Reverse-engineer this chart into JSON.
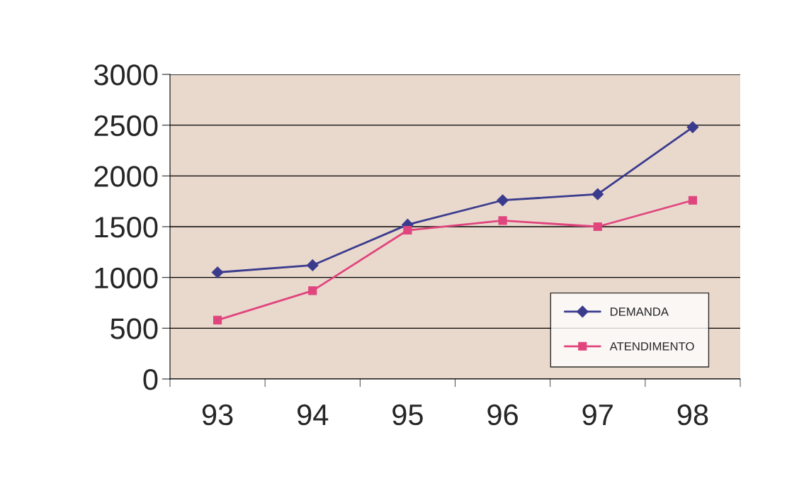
{
  "chart_data": {
    "type": "line",
    "categories": [
      "93",
      "94",
      "95",
      "96",
      "97",
      "98"
    ],
    "series": [
      {
        "name": "DEMANDA",
        "color": "#3b3b8e",
        "marker": "diamond",
        "values": [
          1050,
          1120,
          1520,
          1760,
          1820,
          2480
        ]
      },
      {
        "name": "ATENDIMENTO",
        "color": "#e0457e",
        "marker": "square",
        "values": [
          580,
          870,
          1465,
          1560,
          1500,
          1760
        ]
      }
    ],
    "ylim": [
      0,
      3000
    ],
    "yticks": [
      0,
      500,
      1000,
      1500,
      2000,
      2500,
      3000
    ],
    "grid": "y",
    "legend": "bottom right",
    "line_style": "solid"
  }
}
